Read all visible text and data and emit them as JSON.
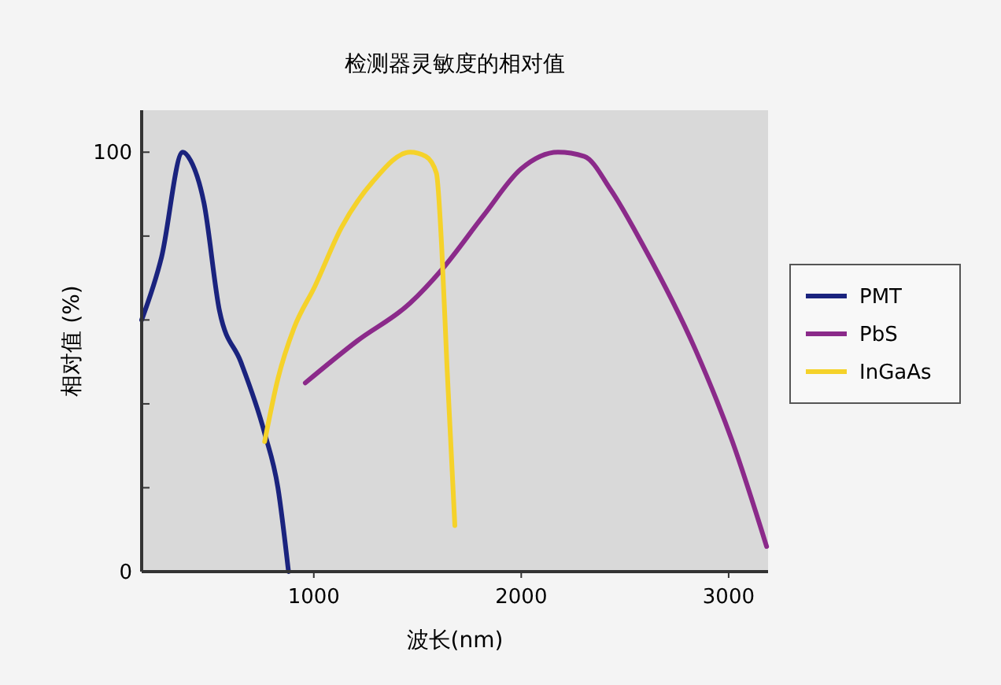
{
  "chart_data": {
    "type": "line",
    "title": "检测器灵敏度的相对值",
    "xlabel": "波长(nm)",
    "ylabel": "相对值 (%)",
    "xlim": [
      170,
      3190
    ],
    "xticks": [
      1000,
      2000,
      3000
    ],
    "ylim": [
      0,
      110
    ],
    "yticks": [
      0,
      {
        "value": 20,
        "label": null
      },
      {
        "value": 40,
        "label": null
      },
      {
        "value": 60,
        "label": null
      },
      {
        "value": 80,
        "label": null
      },
      100
    ],
    "grid": false,
    "legend": "right",
    "line_style": "solid",
    "marker": "none",
    "series": [
      {
        "name": "PMT",
        "color": "#1a237e",
        "x": [
          170,
          266,
          368,
          406,
          470,
          546,
          648,
          763,
          827,
          878
        ],
        "values": [
          60,
          75,
          100,
          98,
          88,
          62,
          50,
          33,
          20,
          0
        ]
      },
      {
        "name": "PbS",
        "color": "#8b2a8a",
        "x": [
          959,
          1209,
          1464,
          1617,
          1820,
          1999,
          2177,
          2304,
          2432,
          2585,
          2839,
          3018,
          3183
        ],
        "values": [
          45,
          55,
          64,
          72,
          85,
          96,
          100,
          99,
          91,
          78,
          53,
          31,
          6
        ]
      },
      {
        "name": "InGaAs",
        "color": "#f5d22a",
        "x": [
          763,
          827,
          904,
          1005,
          1133,
          1285,
          1464,
          1540,
          1591,
          1617,
          1642,
          1680
        ],
        "values": [
          31,
          46,
          58,
          68,
          82,
          93,
          100,
          99,
          95,
          77,
          49,
          11
        ]
      }
    ]
  }
}
